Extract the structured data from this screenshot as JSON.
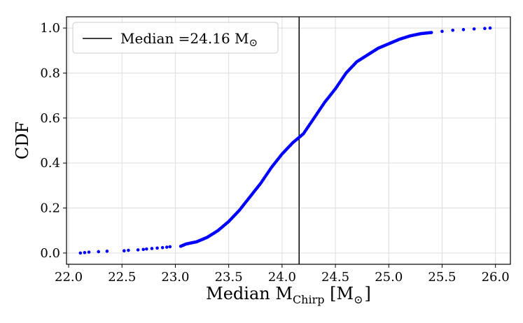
{
  "chart_data": {
    "type": "scatter",
    "xlabel": {
      "prefix": "Median M",
      "sub": "Chirp",
      "suffix": " [M",
      "sun": "⊙",
      "close": "]"
    },
    "ylabel": "CDF",
    "xlim": [
      21.98,
      26.14
    ],
    "ylim": [
      -0.05,
      1.05
    ],
    "x_ticks": [
      22.0,
      22.5,
      23.0,
      23.5,
      24.0,
      24.5,
      25.0,
      25.5,
      26.0
    ],
    "x_tick_labels": [
      "22.0",
      "22.5",
      "23.0",
      "23.5",
      "24.0",
      "24.5",
      "25.0",
      "25.5",
      "26.0"
    ],
    "y_ticks": [
      0.0,
      0.2,
      0.4,
      0.6,
      0.8,
      1.0
    ],
    "y_tick_labels": [
      "0.0",
      "0.2",
      "0.4",
      "0.6",
      "0.8",
      "1.0"
    ],
    "grid": true,
    "legend_position": "top-left",
    "median_line": {
      "value": 24.16,
      "label_prefix": "Median =24.16 M",
      "label_sun": "⊙",
      "color": "#000000"
    },
    "series": [
      {
        "color": "#0000ff",
        "points": [
          [
            22.11,
            0.0
          ],
          [
            22.15,
            0.002
          ],
          [
            22.19,
            0.004
          ],
          [
            22.28,
            0.006
          ],
          [
            22.36,
            0.008
          ],
          [
            22.52,
            0.01
          ],
          [
            22.56,
            0.012
          ],
          [
            22.65,
            0.014
          ],
          [
            22.7,
            0.016
          ],
          [
            22.73,
            0.018
          ],
          [
            22.78,
            0.02
          ],
          [
            22.83,
            0.022
          ],
          [
            22.88,
            0.024
          ],
          [
            22.92,
            0.026
          ],
          [
            22.95,
            0.028
          ],
          [
            23.05,
            0.03
          ],
          [
            23.1,
            0.04
          ],
          [
            23.2,
            0.05
          ],
          [
            23.3,
            0.07
          ],
          [
            23.4,
            0.1
          ],
          [
            23.5,
            0.14
          ],
          [
            23.6,
            0.19
          ],
          [
            23.7,
            0.25
          ],
          [
            23.8,
            0.31
          ],
          [
            23.9,
            0.38
          ],
          [
            24.0,
            0.44
          ],
          [
            24.1,
            0.49
          ],
          [
            24.2,
            0.53
          ],
          [
            24.3,
            0.6
          ],
          [
            24.4,
            0.67
          ],
          [
            24.5,
            0.73
          ],
          [
            24.6,
            0.8
          ],
          [
            24.7,
            0.85
          ],
          [
            24.8,
            0.88
          ],
          [
            24.9,
            0.91
          ],
          [
            25.0,
            0.93
          ],
          [
            25.1,
            0.95
          ],
          [
            25.2,
            0.965
          ],
          [
            25.3,
            0.975
          ],
          [
            25.4,
            0.98
          ],
          [
            25.5,
            0.985
          ],
          [
            25.6,
            0.99
          ],
          [
            25.7,
            0.993
          ],
          [
            25.8,
            0.996
          ],
          [
            25.9,
            0.998
          ],
          [
            25.95,
            1.0
          ]
        ]
      }
    ]
  }
}
